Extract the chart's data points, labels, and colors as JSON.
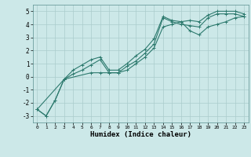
{
  "xlabel": "Humidex (Indice chaleur)",
  "ylabel": "",
  "background_color": "#cce8e8",
  "grid_color": "#aacccc",
  "line_color": "#2d7a6e",
  "xlim": [
    -0.5,
    23.5
  ],
  "ylim": [
    -3.5,
    5.5
  ],
  "xticks": [
    0,
    1,
    2,
    3,
    4,
    5,
    6,
    7,
    8,
    9,
    10,
    11,
    12,
    13,
    14,
    15,
    16,
    17,
    18,
    19,
    20,
    21,
    22,
    23
  ],
  "yticks": [
    -3,
    -2,
    -1,
    0,
    1,
    2,
    3,
    4,
    5
  ],
  "line1_x": [
    0,
    1,
    2,
    3,
    4,
    5,
    6,
    7,
    8,
    9,
    10,
    11,
    12,
    13,
    14,
    15,
    16,
    17,
    18,
    19,
    20,
    21,
    22,
    23
  ],
  "line1_y": [
    -2.5,
    -3.0,
    -1.8,
    -0.2,
    0.5,
    0.9,
    1.3,
    1.5,
    0.5,
    0.5,
    1.0,
    1.6,
    2.1,
    2.9,
    4.6,
    4.3,
    4.2,
    4.3,
    4.2,
    4.7,
    5.0,
    5.0,
    5.0,
    4.8
  ],
  "line2_x": [
    0,
    1,
    2,
    3,
    4,
    5,
    6,
    7,
    8,
    9,
    10,
    11,
    12,
    13,
    14,
    15,
    16,
    17,
    18,
    19,
    20,
    21,
    22,
    23
  ],
  "line2_y": [
    -2.5,
    -3.0,
    -1.8,
    -0.2,
    0.2,
    0.5,
    0.9,
    1.3,
    0.3,
    0.3,
    0.8,
    1.2,
    1.8,
    2.5,
    4.5,
    4.2,
    4.0,
    3.9,
    3.8,
    4.5,
    4.8,
    4.8,
    4.8,
    4.6
  ],
  "line3_x": [
    0,
    3,
    6,
    7,
    8,
    9,
    10,
    11,
    12,
    13,
    14,
    15,
    16,
    17,
    18,
    19,
    20,
    21,
    22,
    23
  ],
  "line3_y": [
    -2.5,
    -0.2,
    0.3,
    0.3,
    0.3,
    0.3,
    0.5,
    1.0,
    1.5,
    2.2,
    3.8,
    4.0,
    4.2,
    3.5,
    3.2,
    3.8,
    4.0,
    4.2,
    4.5,
    4.6
  ]
}
